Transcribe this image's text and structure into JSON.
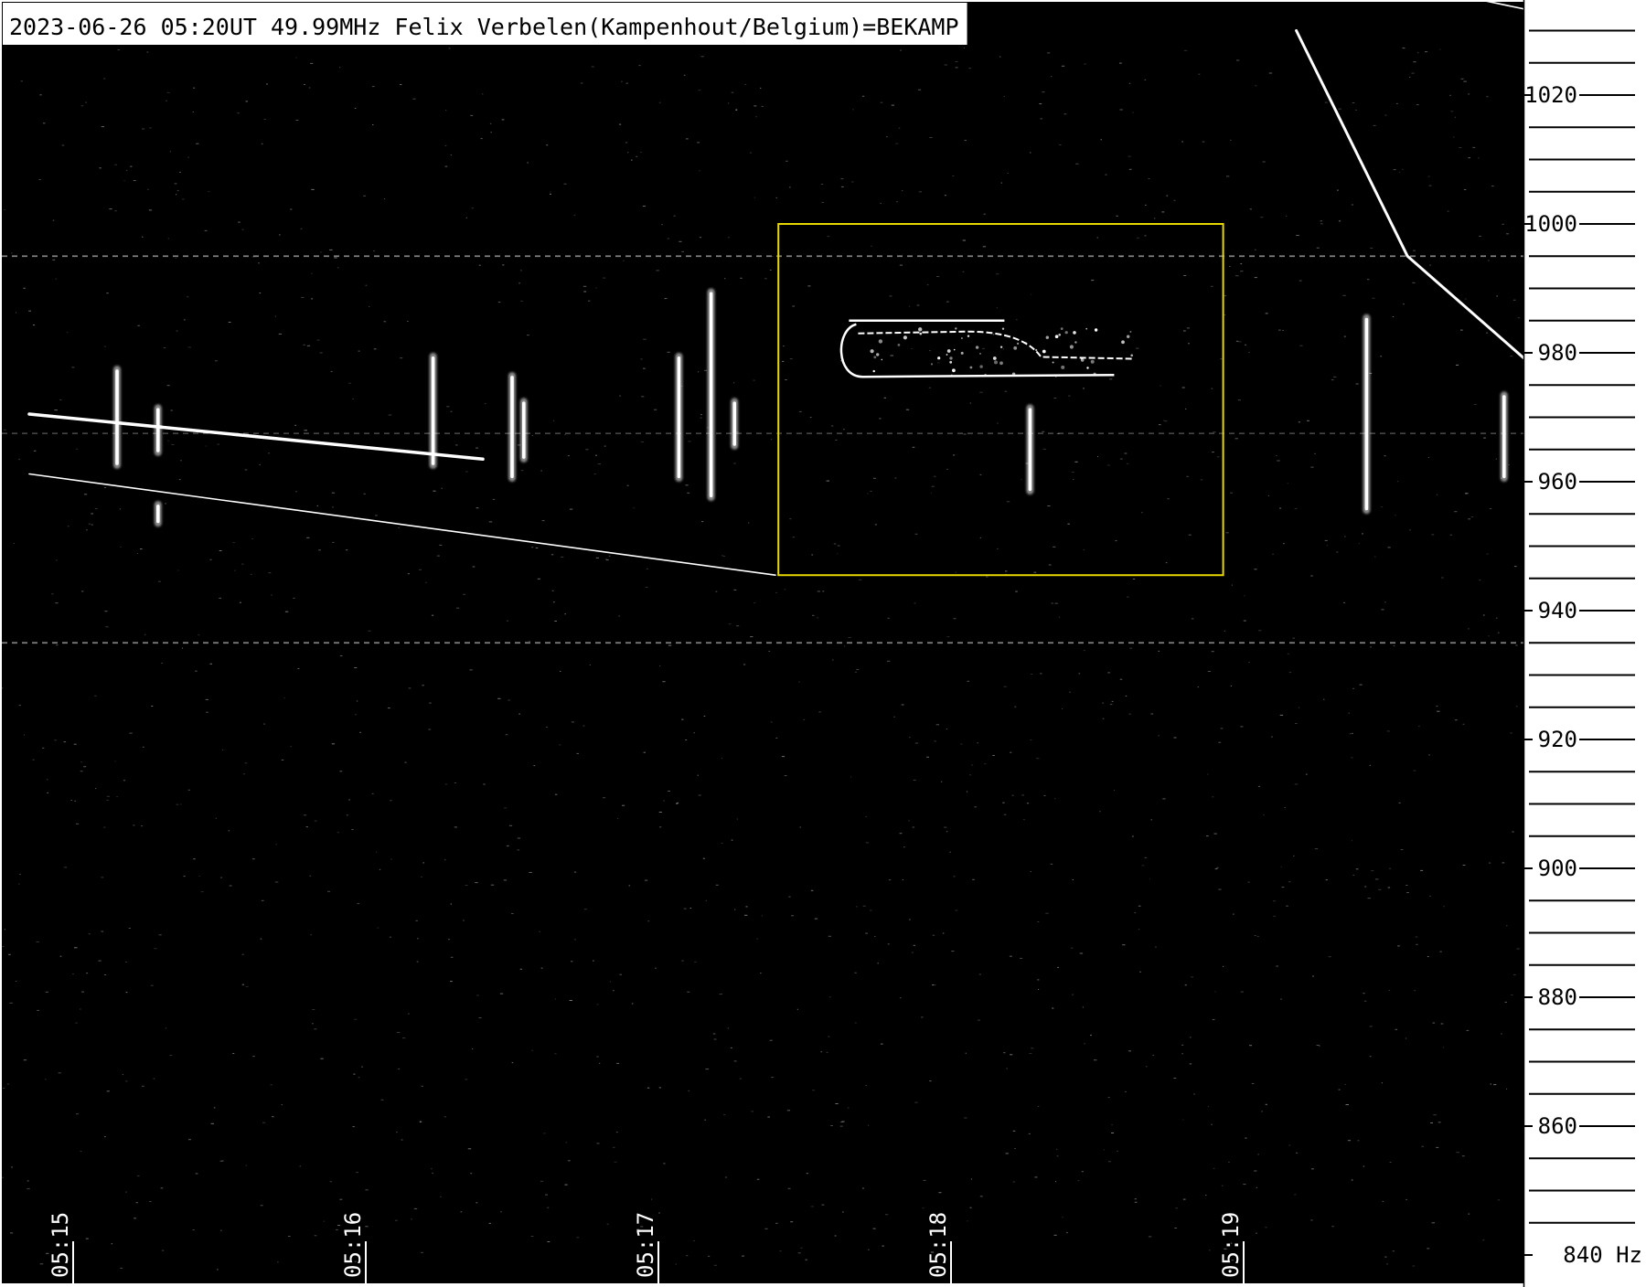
{
  "header": {
    "caption": "2023-06-26 05:20UT 49.99MHz Felix Verbelen(Kampenhout/Belgium)=BEKAMP"
  },
  "colors": {
    "background": "#000000",
    "signal": "#ffffff",
    "highlight_box": "#e6d800",
    "caption_bg": "#ffffff",
    "caption_text": "#000000",
    "axis_panel": "#ffffff"
  },
  "chart_data": {
    "type": "heatmap",
    "title": "2023-06-26 05:20UT 49.99MHz Felix Verbelen(Kampenhout/Belgium)=BEKAMP",
    "x_label": "",
    "y_label": "Hz",
    "x_ticks": [
      "05:15",
      "05:16",
      "05:17",
      "05:18",
      "05:19"
    ],
    "x_tick_minutes": [
      0,
      1,
      2,
      3,
      4
    ],
    "x_range_minutes": [
      -0.15,
      5.05
    ],
    "y_range_hz": [
      838,
      1036
    ],
    "y_ticks": [
      840,
      860,
      880,
      900,
      920,
      940,
      960,
      980,
      1000,
      1020
    ],
    "y_tick_labels": [
      "840 Hz",
      "860",
      "880",
      "900",
      "920",
      "940",
      "960",
      "980",
      "1000",
      "1020"
    ],
    "y_minor_step_hz": 5,
    "highlight_box": {
      "x_minutes": [
        2.41,
        3.93
      ],
      "y_hz": [
        945.5,
        1000
      ]
    },
    "carrier_lines_hz": [
      995,
      935,
      967.5
    ],
    "head_echoes": [
      {
        "x_minutes": [
          -0.15,
          1.4
        ],
        "y_hz": [
          970.5,
          963.5
        ],
        "width": 3.5
      },
      {
        "x_minutes": [
          -0.15,
          2.4
        ],
        "y_hz": [
          961.2,
          945.5
        ],
        "width": 1.6
      },
      {
        "x_minutes": [
          4.18,
          4.56,
          5.05
        ],
        "y_hz": [
          1030,
          995,
          975.5
        ],
        "width": 3
      },
      {
        "x_minutes": [
          4.45,
          4.7,
          5.05
        ],
        "y_hz": [
          1036.5,
          1035.8,
          1032.5
        ],
        "width": 1.6
      }
    ],
    "pings": [
      {
        "x_minutes": 0.15,
        "y_hz": [
          962,
          978
        ]
      },
      {
        "x_minutes": 0.29,
        "y_hz": [
          964,
          972
        ]
      },
      {
        "x_minutes": 0.29,
        "y_hz": [
          953,
          957
        ]
      },
      {
        "x_minutes": 1.23,
        "y_hz": [
          962,
          980
        ]
      },
      {
        "x_minutes": 1.5,
        "y_hz": [
          960,
          977
        ]
      },
      {
        "x_minutes": 1.54,
        "y_hz": [
          963,
          973
        ]
      },
      {
        "x_minutes": 2.07,
        "y_hz": [
          960,
          980
        ]
      },
      {
        "x_minutes": 2.18,
        "y_hz": [
          957,
          990
        ]
      },
      {
        "x_minutes": 2.26,
        "y_hz": [
          965,
          973
        ]
      },
      {
        "x_minutes": 3.27,
        "y_hz": [
          958,
          972
        ]
      },
      {
        "x_minutes": 4.42,
        "y_hz": [
          955,
          986
        ]
      },
      {
        "x_minutes": 4.89,
        "y_hz": [
          960,
          974
        ]
      }
    ],
    "long_echo": {
      "x_minutes": [
        2.62,
        3.62
      ],
      "y_hz": [
        976,
        985
      ]
    }
  }
}
